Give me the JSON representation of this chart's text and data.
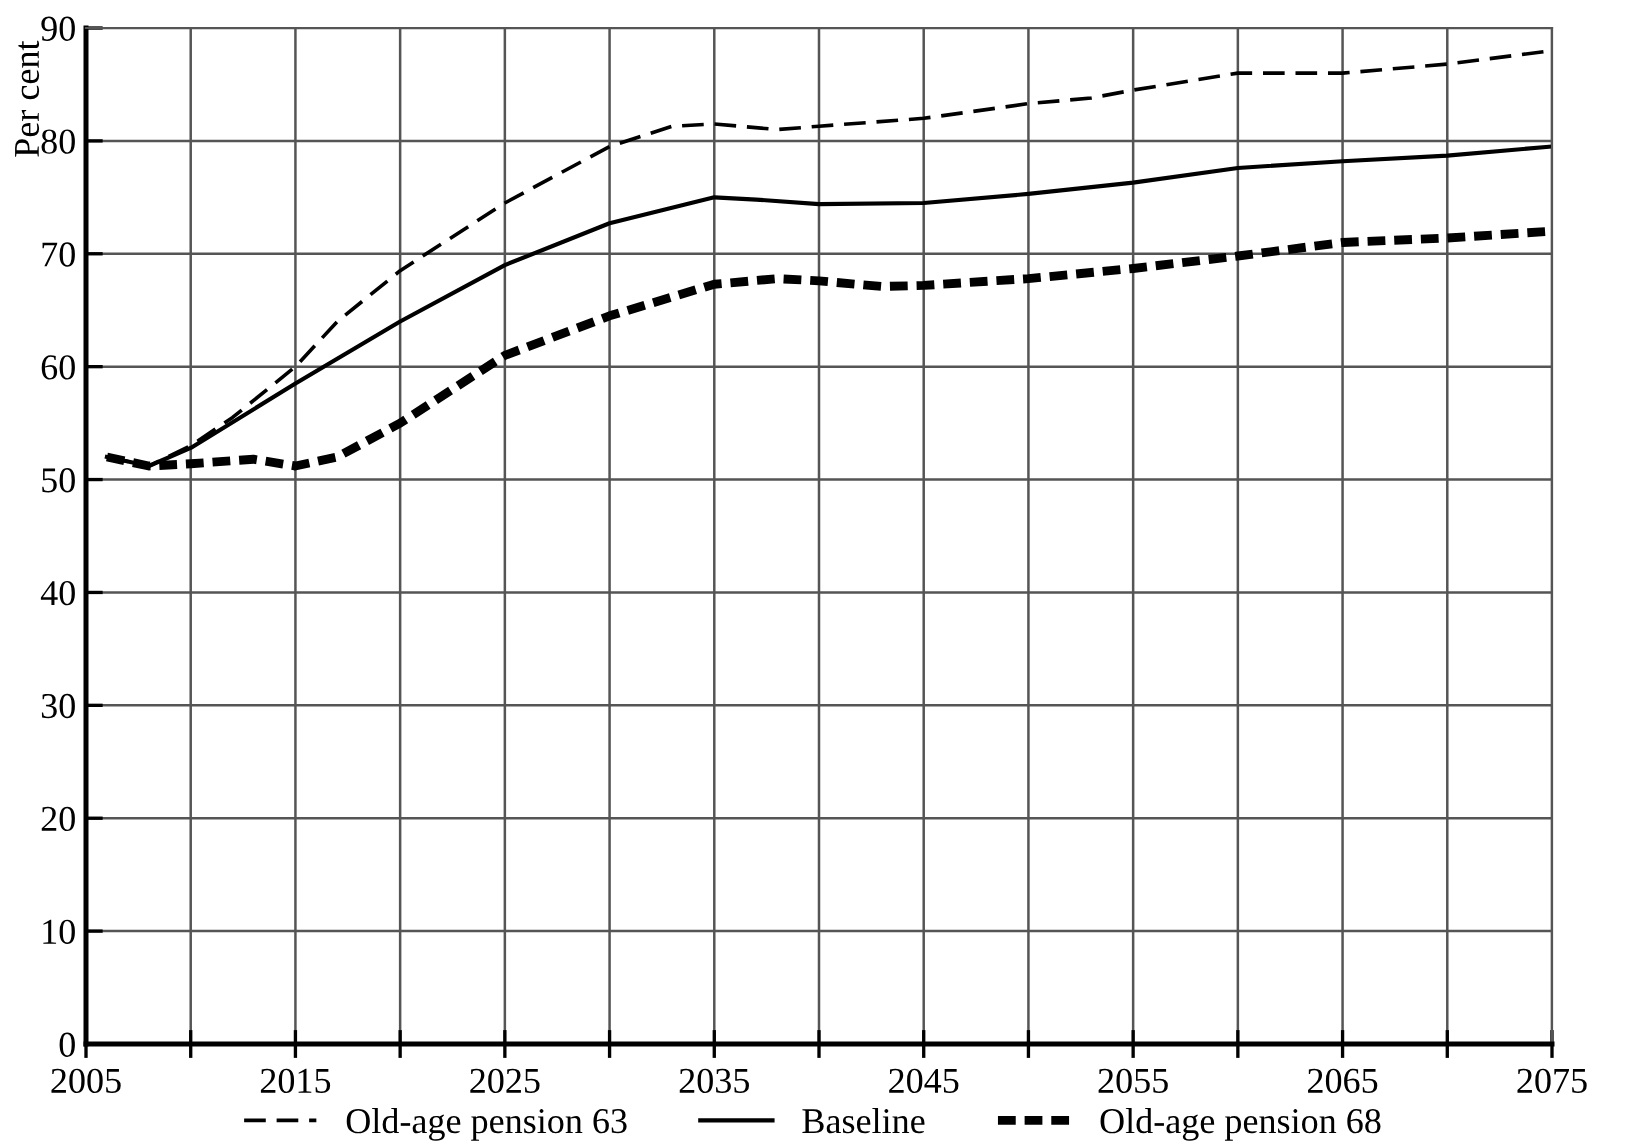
{
  "chart_data": {
    "type": "line",
    "ylabel": "Per cent",
    "xlim": [
      2005,
      2075
    ],
    "ylim": [
      0,
      90
    ],
    "xticks": [
      2005,
      {
        "value": 2010,
        "label": null
      },
      2015,
      {
        "value": 2020,
        "label": null
      },
      2025,
      {
        "value": 2030,
        "label": null
      },
      2035,
      {
        "value": 2040,
        "label": null
      },
      2045,
      {
        "value": 2050,
        "label": null
      },
      2055,
      {
        "value": 2060,
        "label": null
      },
      2065,
      {
        "value": 2070,
        "label": null
      },
      2075
    ],
    "yticks": [
      0,
      10,
      20,
      30,
      40,
      50,
      60,
      70,
      80,
      90
    ],
    "grid": true,
    "legend": "bottom",
    "series": [
      {
        "name": "Old-age pension 63",
        "color": "#000000",
        "line_style": "dashed",
        "x": [
          2006,
          2008,
          2010,
          2012,
          2015,
          2017,
          2020,
          2025,
          2030,
          2033,
          2035,
          2038,
          2040,
          2045,
          2050,
          2053,
          2055,
          2060,
          2065,
          2070,
          2075
        ],
        "values": [
          52,
          51.2,
          53,
          55.5,
          60,
          64,
          68.5,
          74.5,
          79.5,
          81.3,
          81.5,
          81,
          81.3,
          82,
          83.3,
          83.8,
          84.5,
          86,
          86,
          86.8,
          88
        ]
      },
      {
        "name": "Baseline",
        "color": "#000000",
        "line_style": "solid",
        "x": [
          2006,
          2008,
          2010,
          2015,
          2020,
          2025,
          2030,
          2035,
          2037,
          2040,
          2045,
          2050,
          2055,
          2060,
          2065,
          2070,
          2075
        ],
        "values": [
          52,
          51.2,
          52.8,
          58.5,
          64,
          69,
          72.7,
          75,
          74.8,
          74.4,
          74.5,
          75.3,
          76.3,
          77.6,
          78.2,
          78.7,
          79.5
        ]
      },
      {
        "name": "Old-age pension 68",
        "color": "#000000",
        "line_style": "dotted",
        "x": [
          2006,
          2008,
          2010,
          2013,
          2015,
          2017,
          2020,
          2025,
          2030,
          2035,
          2038,
          2040,
          2043,
          2045,
          2050,
          2055,
          2060,
          2065,
          2070,
          2075
        ],
        "values": [
          52,
          51.2,
          51.4,
          51.8,
          51.2,
          52,
          55,
          61,
          64.5,
          67.3,
          67.8,
          67.6,
          67.1,
          67.2,
          67.8,
          68.7,
          69.8,
          71,
          71.4,
          72
        ]
      }
    ]
  }
}
